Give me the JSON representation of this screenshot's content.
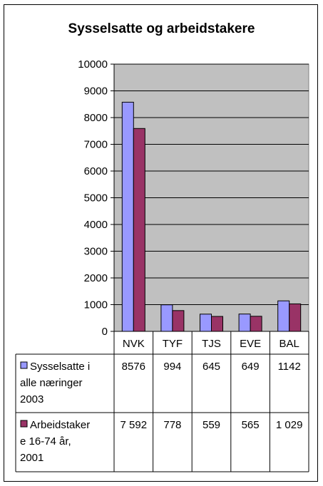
{
  "chart_data": {
    "type": "bar",
    "title": "Sysselsatte og arbeidstakere",
    "categories": [
      "NVK",
      "TYF",
      "TJS",
      "EVE",
      "BAL"
    ],
    "ylim": [
      0,
      10000
    ],
    "yticks": [
      "0",
      "1000",
      "2000",
      "3000",
      "4000",
      "5000",
      "6000",
      "7000",
      "8000",
      "9000",
      "10000"
    ],
    "grid": true,
    "legend": "data-table-below",
    "series": [
      {
        "name_lines": [
          "Sysselsatte i",
          "alle næringer",
          "2003"
        ],
        "values": [
          8576,
          994,
          645,
          649,
          1142
        ],
        "labels": [
          "8576",
          "994",
          "645",
          "649",
          "1142"
        ],
        "color": "#9999ff"
      },
      {
        "name_lines": [
          "Arbeidstaker",
          "e 16-74 år,",
          "2001"
        ],
        "values": [
          7592,
          778,
          559,
          565,
          1029
        ],
        "labels": [
          "7 592",
          "778",
          "559",
          "565",
          "1 029"
        ],
        "color": "#993366"
      }
    ],
    "plot_bg": "#c0c0c0"
  }
}
